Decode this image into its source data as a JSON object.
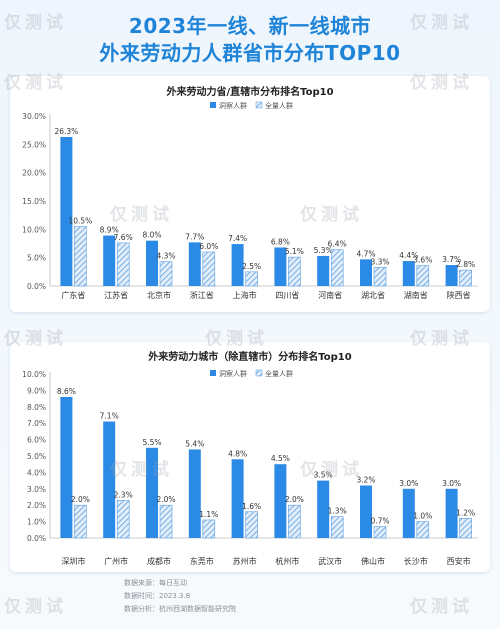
{
  "header": {
    "title_line1": "2023年一线、新一线城市",
    "title_line2": "外来劳动力人群省市分布TOP10"
  },
  "colors": {
    "primary": "#2b8ae6",
    "secondary_hatch": "#5a9fe0",
    "title": "#1f84d8"
  },
  "watermark": "仅测试",
  "chart_data": [
    {
      "type": "bar",
      "title": "外来劳动力省/直辖市分布排名Top10",
      "categories": [
        "广东省",
        "江苏省",
        "北京市",
        "浙江省",
        "上海市",
        "四川省",
        "河南省",
        "湖北省",
        "湖南省",
        "陕西省"
      ],
      "series": [
        {
          "name": "洞察人群",
          "values": [
            26.3,
            8.9,
            8.0,
            7.7,
            7.4,
            6.8,
            5.3,
            4.7,
            4.4,
            3.7
          ]
        },
        {
          "name": "全量人群",
          "values": [
            10.5,
            7.6,
            4.3,
            6.0,
            2.5,
            5.1,
            6.4,
            3.3,
            3.6,
            2.8
          ]
        }
      ],
      "value_labels": [
        [
          "26.3%",
          "8.9%",
          "8.0%",
          "7.7%",
          "7.4%",
          "6.8%",
          "5.3%",
          "4.7%",
          "4.4%",
          "3.7%"
        ],
        [
          "10.5%",
          "7.6%",
          "4.3%",
          "6.0%",
          "2.5%",
          "5.1%",
          "6.4%",
          "3.3%",
          "3.6%",
          "2.8%"
        ]
      ],
      "ylim": [
        0,
        30
      ],
      "yticks": [
        "0.0%",
        "5.0%",
        "10.0%",
        "15.0%",
        "20.0%",
        "25.0%",
        "30.0%"
      ],
      "grid": false,
      "legend": "top-center"
    },
    {
      "type": "bar",
      "title": "外来劳动力城市（除直辖市）分布排名Top10",
      "categories": [
        "深圳市",
        "广州市",
        "成都市",
        "东莞市",
        "苏州市",
        "杭州市",
        "武汉市",
        "佛山市",
        "长沙市",
        "西安市"
      ],
      "series": [
        {
          "name": "洞察人群",
          "values": [
            8.6,
            7.1,
            5.5,
            5.4,
            4.8,
            4.5,
            3.5,
            3.2,
            3.0,
            3.0
          ]
        },
        {
          "name": "全量人群",
          "values": [
            2.0,
            2.3,
            2.0,
            1.1,
            1.6,
            2.0,
            1.3,
            0.7,
            1.0,
            1.2
          ]
        }
      ],
      "value_labels": [
        [
          "8.6%",
          "7.1%",
          "5.5%",
          "5.4%",
          "4.8%",
          "4.5%",
          "3.5%",
          "3.2%",
          "3.0%",
          "3.0%"
        ],
        [
          "2.0%",
          "2.3%",
          "2.0%",
          "1.1%",
          "1.6%",
          "2.0%",
          "1.3%",
          "0.7%",
          "1.0%",
          "1.2%"
        ]
      ],
      "ylim": [
        0,
        10
      ],
      "yticks": [
        "0.0%",
        "1.0%",
        "2.0%",
        "3.0%",
        "4.0%",
        "5.0%",
        "6.0%",
        "7.0%",
        "8.0%",
        "9.0%",
        "10.0%"
      ],
      "grid": false,
      "legend": "top-center"
    }
  ],
  "footer": {
    "source": "数据来源：每日互动",
    "date": "数据时间：2023.3.8",
    "analysis": "数据分析：杭州西湖数据智能研究院"
  }
}
